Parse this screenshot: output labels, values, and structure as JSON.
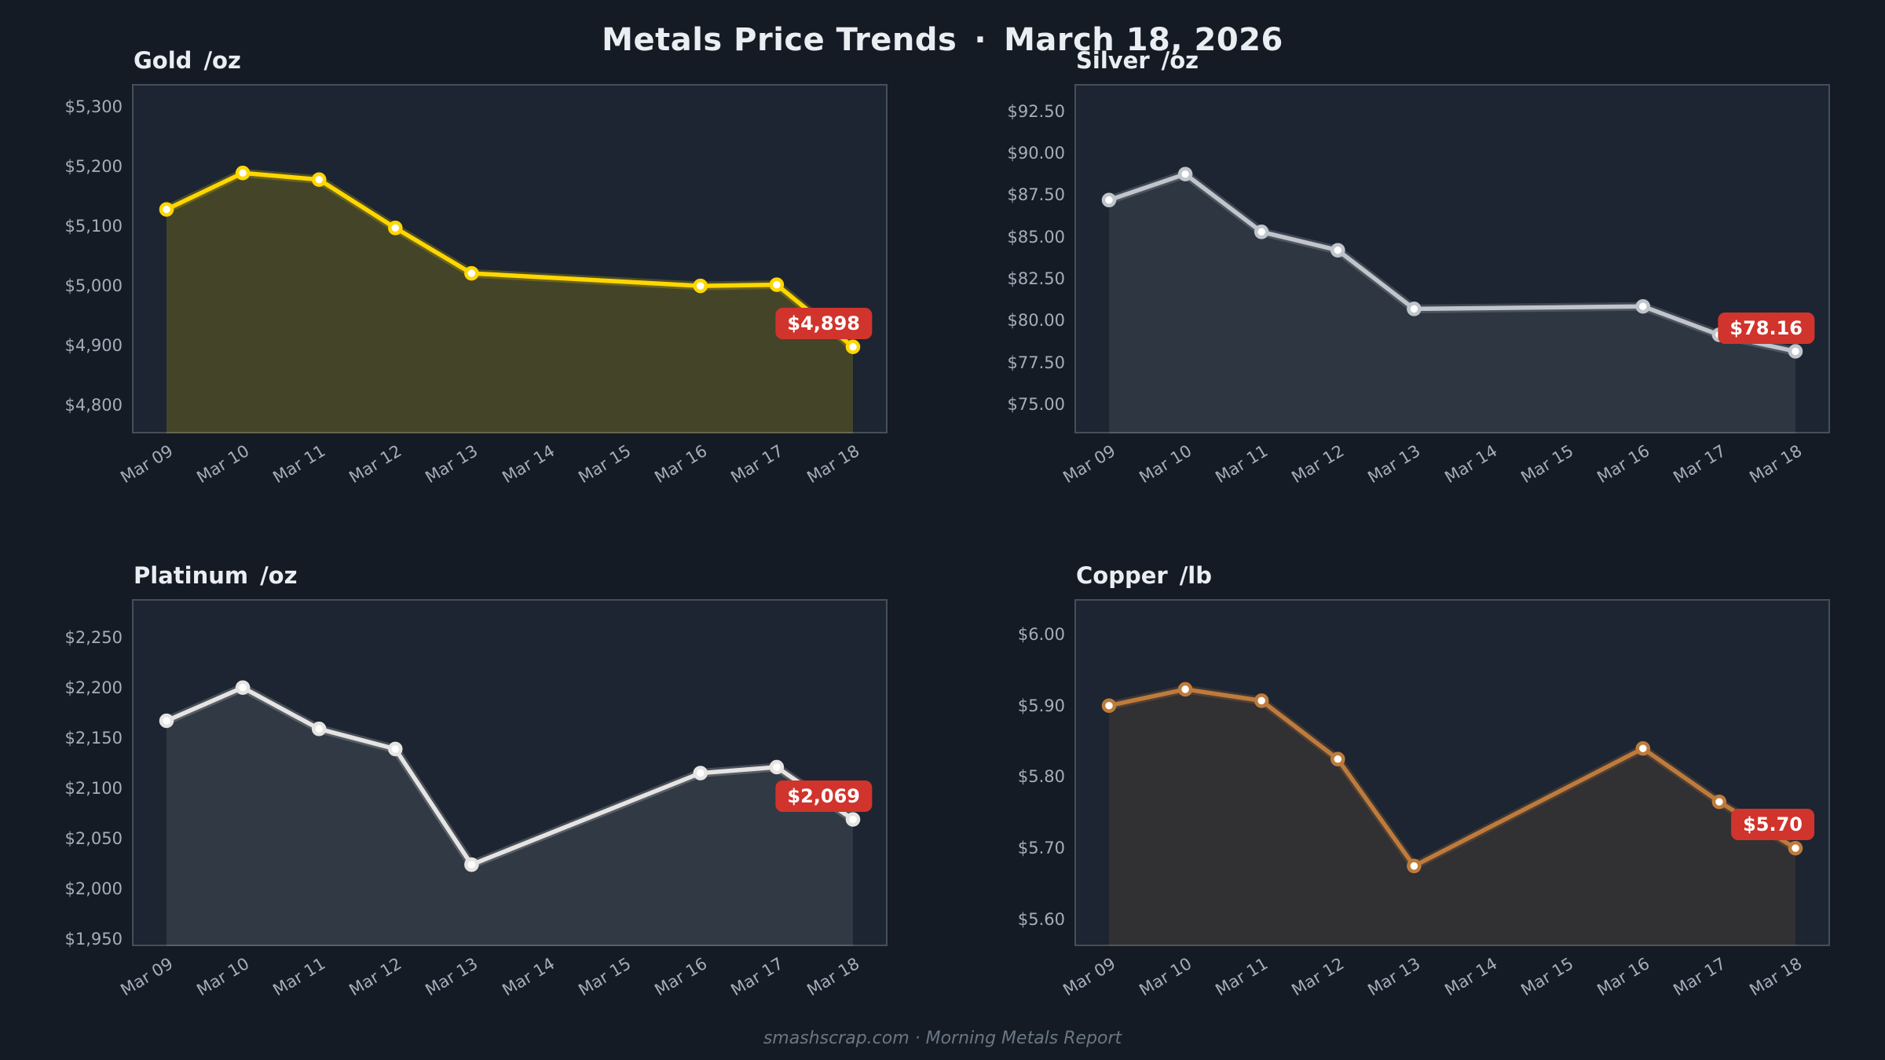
{
  "header": {
    "title": "Metals Price Trends",
    "separator": "·",
    "date": "March 18, 2026"
  },
  "footer": {
    "text": "smashscrap.com · Morning Metals Report"
  },
  "colors": {
    "page_bg": "#141B24",
    "panel_bg": "#1C2531",
    "panel_border": "#454F5C",
    "axis_label": "#A4AEBB",
    "title_text": "#EAEDF1",
    "badge_bg": "#D0342C",
    "badge_text": "#FFFFFF",
    "footer_text": "#6B7684",
    "gold_line": "#FFD700",
    "silver_line": "#C0C5CC",
    "platinum_line": "#E5E4E2",
    "copper_line": "#BE7B3C"
  },
  "x_labels": [
    "Mar 09",
    "Mar 10",
    "Mar 11",
    "Mar 12",
    "Mar 13",
    "Mar 14",
    "Mar 15",
    "Mar 16",
    "Mar 17",
    "Mar 18"
  ],
  "chart_data": [
    {
      "type": "area",
      "title": "Gold",
      "unit": "/oz",
      "line_color": "#FFD700",
      "fill_opacity": 0.18,
      "ylim": [
        4753,
        5338
      ],
      "y_ticks": [
        5300,
        5200,
        5100,
        5000,
        4900,
        4800
      ],
      "y_tick_labels": [
        "$5,300",
        "$5,200",
        "$5,100",
        "$5,000",
        "$4,900",
        "$4,800"
      ],
      "points": [
        {
          "x": "Mar 09",
          "y": 5128
        },
        {
          "x": "Mar 10",
          "y": 5189
        },
        {
          "x": "Mar 11",
          "y": 5178
        },
        {
          "x": "Mar 12",
          "y": 5097
        },
        {
          "x": "Mar 13",
          "y": 5021
        },
        {
          "x": "Mar 16",
          "y": 5000
        },
        {
          "x": "Mar 17",
          "y": 5002
        },
        {
          "x": "Mar 18",
          "y": 4898
        }
      ],
      "last_value_label": "$4,898"
    },
    {
      "type": "area",
      "title": "Silver",
      "unit": "/oz",
      "line_color": "#C0C5CC",
      "fill_opacity": 0.11,
      "ylim": [
        73.26,
        94.13
      ],
      "y_ticks": [
        92.5,
        90.0,
        87.5,
        85.0,
        82.5,
        80.0,
        77.5,
        75.0
      ],
      "y_tick_labels": [
        "$92.50",
        "$90.00",
        "$87.50",
        "$85.00",
        "$82.50",
        "$80.00",
        "$77.50",
        "$75.00"
      ],
      "points": [
        {
          "x": "Mar 09",
          "y": 87.2
        },
        {
          "x": "Mar 10",
          "y": 88.75
        },
        {
          "x": "Mar 11",
          "y": 85.3
        },
        {
          "x": "Mar 12",
          "y": 84.2
        },
        {
          "x": "Mar 13",
          "y": 80.7
        },
        {
          "x": "Mar 16",
          "y": 80.85
        },
        {
          "x": "Mar 17",
          "y": 79.15
        },
        {
          "x": "Mar 18",
          "y": 78.16
        }
      ],
      "last_value_label": "$78.16"
    },
    {
      "type": "area",
      "title": "Platinum",
      "unit": "/oz",
      "line_color": "#E5E4E2",
      "fill_opacity": 0.11,
      "ylim": [
        1943,
        2288
      ],
      "y_ticks": [
        2250,
        2200,
        2150,
        2100,
        2050,
        2000,
        1950
      ],
      "y_tick_labels": [
        "$2,250",
        "$2,200",
        "$2,150",
        "$2,100",
        "$2,050",
        "$2,000",
        "$1,950"
      ],
      "points": [
        {
          "x": "Mar 09",
          "y": 2167
        },
        {
          "x": "Mar 10",
          "y": 2200
        },
        {
          "x": "Mar 11",
          "y": 2159
        },
        {
          "x": "Mar 12",
          "y": 2139
        },
        {
          "x": "Mar 13",
          "y": 2024
        },
        {
          "x": "Mar 16",
          "y": 2115
        },
        {
          "x": "Mar 17",
          "y": 2121
        },
        {
          "x": "Mar 18",
          "y": 2069
        }
      ],
      "last_value_label": "$2,069"
    },
    {
      "type": "area",
      "title": "Copper",
      "unit": "/lb",
      "line_color": "#BE7B3C",
      "fill_opacity": 0.13,
      "ylim": [
        5.5625,
        6.0496
      ],
      "y_ticks": [
        6.0,
        5.9,
        5.8,
        5.7,
        5.6
      ],
      "y_tick_labels": [
        "$6.00",
        "$5.90",
        "$5.80",
        "$5.70",
        "$5.60"
      ],
      "points": [
        {
          "x": "Mar 09",
          "y": 5.9
        },
        {
          "x": "Mar 10",
          "y": 5.923
        },
        {
          "x": "Mar 11",
          "y": 5.907
        },
        {
          "x": "Mar 12",
          "y": 5.825
        },
        {
          "x": "Mar 13",
          "y": 5.675
        },
        {
          "x": "Mar 16",
          "y": 5.84
        },
        {
          "x": "Mar 17",
          "y": 5.765
        },
        {
          "x": "Mar 18",
          "y": 5.7
        }
      ],
      "last_value_label": "$5.70"
    }
  ]
}
